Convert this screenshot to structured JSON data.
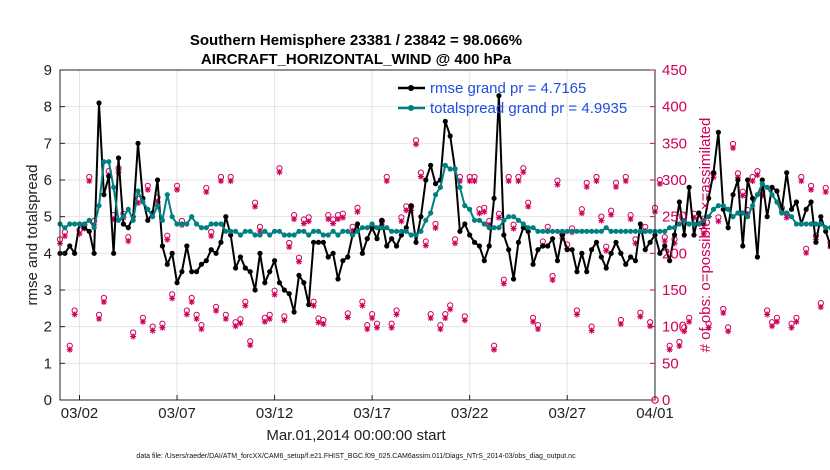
{
  "chart_data": {
    "type": "line",
    "title": "Southern Hemisphere 23381 / 23842 = 98.066%",
    "subtitle": "AIRCRAFT_HORIZONTAL_WIND @ 400 hPa",
    "xlabel": "Mar.01,2014 00:00:00 start",
    "ylabel": "rmse and totalspread",
    "ylabel_right": "# of obs: o=possible; ×=assimilated",
    "footnote": "data file: /Users/raeder/DAI/ATM_forcXX/CAM6_setup/f.e21.FHIST_BGC.f09_025.CAM6assim.011/Diags_NTrS_2014-03/obs_diag_output.nc",
    "xlim": [
      0.5,
      31.0
    ],
    "ylim": [
      0,
      9
    ],
    "ylim_right": [
      0,
      450
    ],
    "x_ticks": [
      {
        "x": 1.5,
        "label": "03/02"
      },
      {
        "x": 6.5,
        "label": "03/07"
      },
      {
        "x": 11.5,
        "label": "03/12"
      },
      {
        "x": 16.5,
        "label": "03/17"
      },
      {
        "x": 21.5,
        "label": "03/22"
      },
      {
        "x": 26.5,
        "label": "03/27"
      },
      {
        "x": 31.0,
        "label": "04/01"
      }
    ],
    "y_ticks": [
      "0",
      "1",
      "2",
      "3",
      "4",
      "5",
      "6",
      "7",
      "8",
      "9"
    ],
    "y_ticks_right": [
      "0",
      "50",
      "100",
      "150",
      "200",
      "250",
      "300",
      "350",
      "400",
      "450"
    ],
    "grid": true,
    "colors": {
      "rmse": "#000000",
      "spread": "#008080",
      "obs": "#d1005a",
      "legend_text": "#1f4fe0"
    },
    "series": [
      {
        "name": "rmse grand pr = 4.7165",
        "x_start": 0.5,
        "x_step": 0.25,
        "values": [
          4.0,
          4.0,
          4.2,
          4.0,
          4.8,
          4.7,
          4.6,
          4.0,
          8.1,
          5.6,
          6.1,
          4.0,
          6.6,
          4.8,
          4.7,
          5.0,
          7.0,
          5.5,
          4.9,
          5.1,
          6.0,
          4.2,
          3.7,
          4.0,
          3.2,
          3.5,
          4.2,
          3.5,
          3.5,
          3.7,
          3.8,
          4.1,
          4.0,
          4.3,
          5.0,
          4.5,
          3.6,
          3.9,
          3.6,
          3.5,
          3.0,
          4.0,
          3.2,
          3.5,
          3.8,
          3.2,
          3.0,
          2.9,
          2.4,
          3.4,
          3.2,
          2.6,
          4.3,
          4.3,
          4.3,
          3.9,
          4.0,
          3.3,
          3.8,
          3.9,
          4.5,
          4.8,
          4.0,
          4.4,
          4.7,
          4.4,
          4.9,
          4.2,
          4.4,
          4.2,
          4.5,
          4.7,
          5.3,
          4.3,
          5.0,
          6.0,
          6.4,
          5.9,
          6.0,
          7.6,
          7.2,
          6.3,
          4.6,
          4.8,
          4.5,
          4.3,
          4.2,
          3.8,
          4.2,
          5.5,
          8.3,
          4.5,
          4.1,
          3.3,
          4.3,
          4.7,
          4.6,
          3.7,
          4.1,
          4.2,
          4.2,
          4.4,
          3.8,
          4.5,
          4.1,
          4.1,
          3.5,
          4.0,
          3.5,
          4.1,
          4.3,
          3.9,
          3.6,
          4.0,
          4.3,
          4.0,
          3.7,
          3.9,
          3.8,
          4.8,
          4.1,
          4.3,
          4.5,
          4.0,
          4.2,
          3.8,
          4.5,
          5.4,
          4.5,
          5.8,
          4.5,
          5.1,
          4.8,
          5.5,
          6.2,
          7.3,
          5.2,
          4.7,
          5.6,
          6.0,
          4.2,
          6.0,
          5.5,
          3.9,
          6.0,
          5.0,
          5.8,
          5.7,
          5.2,
          6.2,
          5.2,
          5.4,
          4.8,
          5.2,
          5.4,
          4.3,
          5.0,
          4.6,
          4.2,
          4.9,
          4.4,
          4.6,
          3.6,
          4.4,
          4.0,
          3.8,
          4.8,
          4.2,
          3.9,
          4.5,
          4.0,
          3.4,
          3.6,
          3.5,
          3.5
        ]
      },
      {
        "name": "totalspread grand pr = 4.9935",
        "x_start": 0.5,
        "x_step": 0.25,
        "values": [
          4.8,
          4.7,
          4.8,
          4.8,
          4.8,
          4.8,
          4.9,
          4.7,
          5.3,
          6.5,
          6.5,
          5.8,
          4.9,
          5.0,
          5.2,
          4.9,
          5.7,
          5.4,
          5.2,
          5.0,
          5.3,
          4.9,
          5.6,
          5.0,
          4.8,
          4.8,
          4.8,
          5.0,
          4.8,
          4.7,
          4.7,
          4.8,
          4.8,
          4.8,
          4.6,
          4.6,
          4.6,
          4.5,
          4.6,
          4.6,
          4.5,
          4.5,
          4.6,
          4.5,
          4.6,
          4.6,
          4.5,
          4.5,
          4.5,
          4.6,
          4.6,
          4.5,
          4.6,
          4.6,
          4.5,
          4.5,
          4.6,
          4.5,
          4.6,
          4.6,
          4.5,
          4.6,
          4.7,
          4.7,
          4.8,
          4.7,
          4.7,
          4.7,
          4.6,
          4.6,
          4.6,
          4.6,
          4.5,
          4.5,
          4.6,
          4.9,
          5.1,
          5.6,
          5.8,
          6.4,
          6.3,
          6.3,
          5.8,
          5.3,
          5.2,
          4.9,
          4.9,
          4.8,
          4.7,
          4.7,
          4.7,
          4.9,
          5.0,
          5.0,
          4.9,
          4.8,
          4.7,
          4.7,
          4.6,
          4.6,
          4.6,
          4.6,
          4.6,
          4.6,
          4.6,
          4.6,
          4.6,
          4.6,
          4.6,
          4.6,
          4.6,
          4.6,
          4.7,
          4.6,
          4.6,
          4.6,
          4.6,
          4.6,
          4.6,
          4.6,
          4.6,
          4.6,
          4.6,
          4.6,
          4.6,
          4.7,
          4.7,
          4.8,
          4.9,
          4.8,
          4.8,
          4.8,
          4.9,
          5.0,
          5.2,
          5.3,
          5.3,
          5.2,
          5.0,
          5.1,
          5.1,
          5.0,
          5.3,
          5.6,
          5.9,
          5.8,
          5.6,
          5.4,
          5.1,
          5.1,
          5.0,
          4.8,
          4.8,
          4.8,
          4.8,
          4.8,
          4.8,
          4.7,
          4.7,
          4.7,
          4.8,
          4.7,
          4.7,
          4.7,
          4.7,
          4.7,
          4.6,
          4.5,
          4.6,
          4.5,
          4.6,
          4.7,
          4.6,
          4.5,
          4.5
        ]
      }
    ],
    "obs": {
      "x_start": 0.5,
      "x_step": 0.25,
      "counts": [
        215,
        225,
        70,
        118,
        228,
        235,
        300,
        240,
        112,
        135,
        308,
        248,
        312,
        250,
        218,
        88,
        270,
        108,
        288,
        96,
        272,
        100,
        220,
        140,
        288,
        240,
        118,
        135,
        112,
        98,
        285,
        225,
        123,
        300,
        112,
        300,
        102,
        106,
        130,
        76,
        265,
        232,
        108,
        112,
        145,
        312,
        110,
        210,
        248,
        190,
        242,
        245,
        130,
        107,
        105,
        248,
        242,
        248,
        250,
        114,
        232,
        258,
        130,
        98,
        113,
        100,
        240,
        300,
        100,
        118,
        245,
        260,
        260,
        350,
        306,
        212,
        113,
        236,
        98,
        113,
        125,
        215,
        300,
        110,
        300,
        300,
        256,
        258,
        240,
        70,
        250,
        160,
        300,
        235,
        300,
        312,
        265,
        108,
        98,
        212,
        232,
        165,
        295,
        222,
        208,
        230,
        118,
        256,
        292,
        96,
        300,
        246,
        205,
        254,
        292,
        105,
        300,
        248,
        215,
        115,
        232,
        102,
        258,
        296,
        218,
        70,
        215,
        75,
        95,
        108,
        250,
        242,
        228,
        100,
        305,
        245,
        120,
        95,
        345,
        305,
        280,
        255,
        300,
        308,
        280,
        118,
        102,
        108,
        258,
        250,
        100,
        108,
        300,
        202,
        288,
        220,
        128,
        285,
        210,
        238,
        250,
        95,
        100,
        210,
        248,
        228,
        250,
        298,
        85,
        230,
        230,
        140,
        250,
        108,
        200,
        210,
        275,
        130,
        225
      ]
    }
  }
}
